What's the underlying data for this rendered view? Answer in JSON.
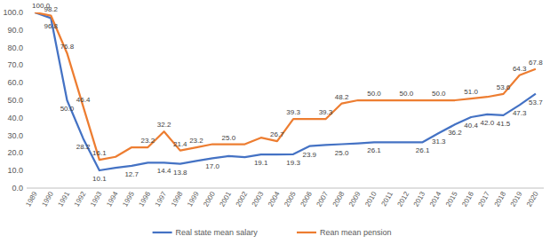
{
  "chart_data": {
    "type": "line",
    "categories": [
      "1989",
      "1990",
      "1991",
      "1992",
      "1993",
      "1994",
      "1995",
      "1996",
      "1997",
      "1998",
      "1999",
      "2000",
      "2001",
      "2002",
      "2003",
      "2004",
      "2005",
      "2006",
      "2007",
      "2008",
      "2009",
      "2010",
      "2011",
      "2012",
      "2013",
      "2014",
      "2015",
      "2016",
      "2017",
      "2018",
      "2019",
      "2020"
    ],
    "series": [
      {
        "name": "Real state mean salary",
        "color": "#4472c4",
        "marker": "none",
        "line_style": "solid",
        "values": [
          100.0,
          96.8,
          50.0,
          28.2,
          10.1,
          11.5,
          12.7,
          14.5,
          14.4,
          13.8,
          15.5,
          17.0,
          18.2,
          17.6,
          19.1,
          19.1,
          19.3,
          23.9,
          24.5,
          25.0,
          25.5,
          26.1,
          26.1,
          26.1,
          26.1,
          31.3,
          36.2,
          40.4,
          42.0,
          41.5,
          47.3,
          53.7
        ],
        "value_labels": [
          null,
          "96.8",
          "50.0",
          "28.2",
          "10.1",
          null,
          "12.7",
          null,
          "14.4",
          "13.8",
          null,
          "17.0",
          null,
          null,
          "19.1",
          null,
          "19.3",
          "23.9",
          null,
          "25.0",
          null,
          "26.1",
          null,
          null,
          "26.1",
          "31.3",
          "36.2",
          "40.4",
          "42.0",
          "41.5",
          "47.3",
          "53.7"
        ]
      },
      {
        "name": "Rean mean pension",
        "color": "#ed7d31",
        "marker": "none",
        "line_style": "solid",
        "values": [
          100.0,
          98.2,
          76.8,
          46.4,
          16.1,
          17.8,
          23.2,
          23.2,
          32.2,
          21.4,
          23.2,
          25.0,
          25.0,
          25.0,
          28.7,
          26.7,
          39.3,
          39.3,
          39.3,
          48.2,
          50.0,
          50.0,
          50.0,
          50.0,
          50.0,
          50.0,
          50.0,
          51.0,
          51.9,
          53.6,
          64.3,
          67.8
        ],
        "value_labels": [
          "100.0",
          "98.2",
          "76.8",
          "46.4",
          "16.1",
          null,
          null,
          "23.2",
          "32.2",
          "21.4",
          "23.2",
          null,
          "25.0",
          null,
          null,
          "26.7",
          "39.3",
          null,
          "39.3",
          "48.2",
          null,
          "50.0",
          null,
          "50.0",
          null,
          "50.0",
          null,
          "51.0",
          null,
          "53.6",
          "64.3",
          "67.8"
        ]
      }
    ],
    "ylim": [
      0,
      100
    ],
    "yticks": [
      {
        "value": 0,
        "label": "0.0"
      },
      {
        "value": 10,
        "label": "10.0"
      },
      {
        "value": 20,
        "label": "20.0"
      },
      {
        "value": 30,
        "label": "30.0"
      },
      {
        "value": 40,
        "label": "40.0"
      },
      {
        "value": 50,
        "label": "50.0"
      },
      {
        "value": 60,
        "label": "60.0"
      },
      {
        "value": 70,
        "label": "70.0"
      },
      {
        "value": 80,
        "label": "80.0"
      },
      {
        "value": 90,
        "label": "90.0"
      },
      {
        "value": 100,
        "label": "100.0"
      }
    ],
    "grid": false,
    "legend": "bottom",
    "data_labels": true
  }
}
